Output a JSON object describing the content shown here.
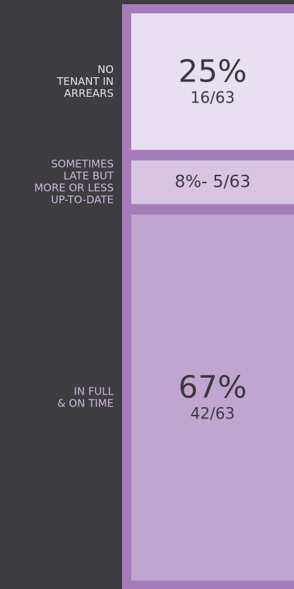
{
  "chart_data": {
    "type": "stacked_bar",
    "categories": [
      [
        "NO",
        "TENANT IN",
        "ARREARS"
      ],
      [
        "SOMETIMES",
        "LATE BUT",
        "MORE OR LESS",
        "UP-TO-DATE"
      ],
      [
        "IN FULL",
        "& ON TIME"
      ]
    ],
    "values": [
      25,
      8,
      67
    ],
    "value_labels": [
      "25%",
      "8%- 5/63",
      "67%"
    ],
    "count_labels": [
      "16/63",
      null,
      "42/63"
    ],
    "colors": [
      "#e8dff0",
      "#d7c5e3",
      "#c1a5d1"
    ],
    "border_color": "#a57cba"
  }
}
